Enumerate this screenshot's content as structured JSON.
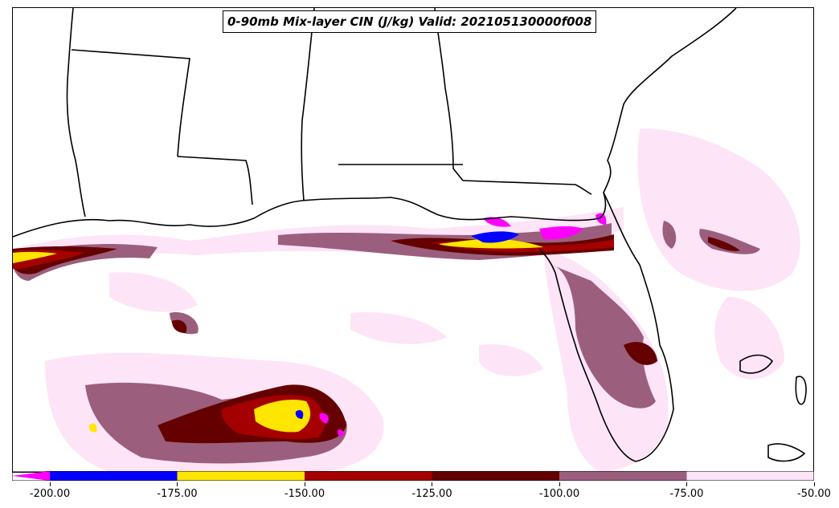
{
  "title": "0-90mb Mix-layer CIN (J/kg) Valid: 202105130000f008",
  "colorbar": {
    "extend_color": "#ff00ff",
    "bins": [
      {
        "from": -200,
        "to": -175,
        "color": "#0000ff"
      },
      {
        "from": -175,
        "to": -150,
        "color": "#ffe600"
      },
      {
        "from": -150,
        "to": -125,
        "color": "#a50000"
      },
      {
        "from": -125,
        "to": -100,
        "color": "#640000"
      },
      {
        "from": -100,
        "to": -75,
        "color": "#9b5f7d"
      },
      {
        "from": -75,
        "to": -50,
        "color": "#fde4f6"
      }
    ],
    "tick_labels": [
      "-200.00",
      "-175.00",
      "-150.00",
      "-125.00",
      "-100.00",
      "-75.00",
      "-50.00"
    ]
  }
}
